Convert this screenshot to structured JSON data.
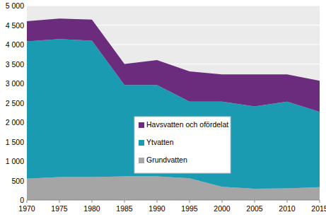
{
  "chart_data": {
    "type": "area",
    "stacked": true,
    "x": [
      1970,
      1975,
      1980,
      1985,
      1990,
      1995,
      2000,
      2005,
      2010,
      2015
    ],
    "xlim": [
      1970,
      2015
    ],
    "xticks": [
      1970,
      1975,
      1980,
      1985,
      1990,
      1995,
      2000,
      2005,
      2010,
      2015
    ],
    "ylim": [
      0,
      5000
    ],
    "yticks": [
      0,
      500,
      {
        "value": 1000,
        "label": "1 000"
      },
      {
        "value": 1500,
        "label": "1 500"
      },
      {
        "value": 2000,
        "label": "2 000"
      },
      {
        "value": 2500,
        "label": "2 500"
      },
      {
        "value": 3000,
        "label": "3 000"
      },
      {
        "value": 3500,
        "label": "3 500"
      },
      {
        "value": 4000,
        "label": "4 000"
      },
      {
        "value": 4500,
        "label": "4 500"
      },
      {
        "value": 5000,
        "label": "5 000"
      }
    ],
    "grid": true,
    "legend": "center",
    "series": [
      {
        "name": "Grundvatten",
        "color": "#a5a5a5",
        "values": [
          550,
          590,
          590,
          610,
          610,
          560,
          340,
          290,
          300,
          330
        ]
      },
      {
        "name": "Ytvatten",
        "color": "#1b9bb1",
        "values": [
          3530,
          3550,
          3510,
          2350,
          2350,
          1970,
          2190,
          2120,
          2230,
          1940
        ]
      },
      {
        "name": "Havsvatten och ofördelat",
        "color": "#6b2c7e",
        "values": [
          520,
          530,
          540,
          540,
          640,
          780,
          700,
          820,
          700,
          800
        ]
      }
    ]
  }
}
